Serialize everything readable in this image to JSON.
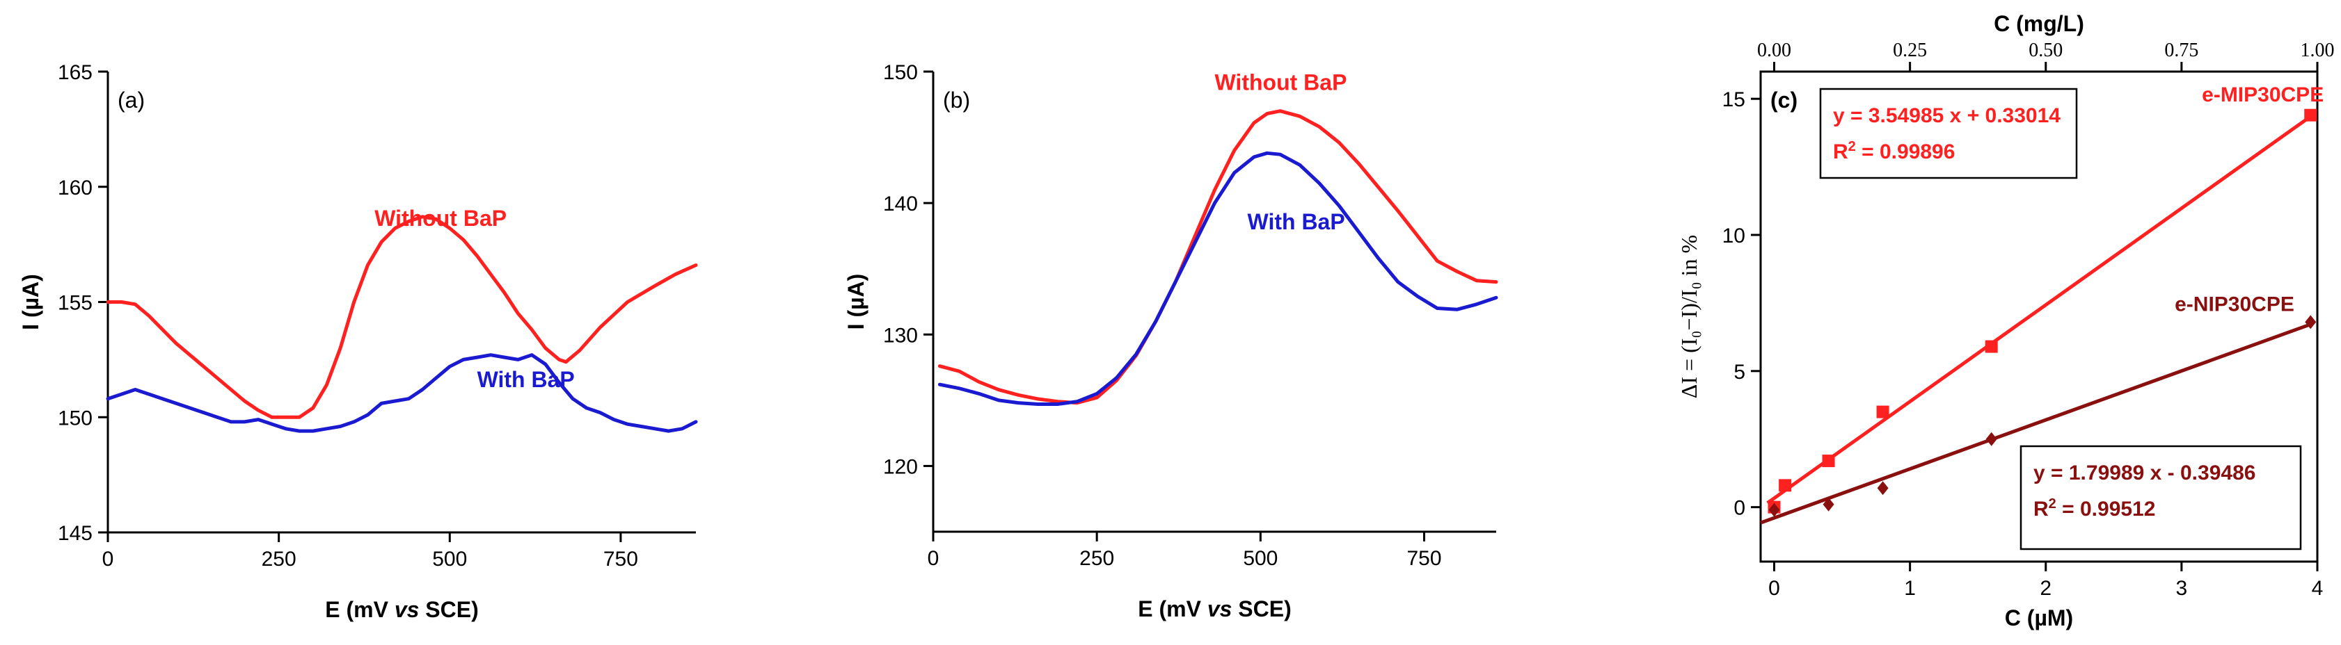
{
  "chart_data": [
    {
      "id": "a",
      "type": "line",
      "panel_label": "(a)",
      "xlabel": {
        "pre": "E (mV ",
        "ital": "vs",
        "post": " SCE)"
      },
      "ylabel": "I (µA)",
      "xlim": [
        0,
        860
      ],
      "ylim": [
        145,
        165
      ],
      "xticks": [
        0,
        250,
        500,
        750
      ],
      "yticks": [
        145,
        150,
        155,
        160,
        165
      ],
      "series": [
        {
          "name": "Without BaP",
          "color": "#ff2020",
          "label_at": [
            390,
            158.3
          ],
          "x": [
            0,
            20,
            40,
            60,
            80,
            100,
            120,
            140,
            160,
            180,
            200,
            220,
            240,
            260,
            280,
            300,
            320,
            340,
            360,
            380,
            400,
            420,
            440,
            460,
            480,
            500,
            520,
            540,
            560,
            580,
            600,
            620,
            640,
            660,
            670,
            690,
            720,
            760,
            800,
            830,
            860
          ],
          "y": [
            155.0,
            155.0,
            154.9,
            154.4,
            153.8,
            153.2,
            152.7,
            152.2,
            151.7,
            151.2,
            150.7,
            150.3,
            150.0,
            150.0,
            150.0,
            150.4,
            151.4,
            153.0,
            155.0,
            156.6,
            157.6,
            158.2,
            158.5,
            158.7,
            158.6,
            158.2,
            157.7,
            157.0,
            156.2,
            155.4,
            154.5,
            153.8,
            153.0,
            152.5,
            152.4,
            152.9,
            153.9,
            155.0,
            155.7,
            156.2,
            156.6
          ]
        },
        {
          "name": "With BaP",
          "color": "#1a1ad0",
          "label_at": [
            540,
            151.3
          ],
          "x": [
            0,
            20,
            40,
            60,
            80,
            100,
            120,
            140,
            160,
            180,
            200,
            220,
            240,
            260,
            280,
            300,
            320,
            340,
            360,
            380,
            400,
            420,
            440,
            460,
            480,
            500,
            520,
            540,
            560,
            580,
            600,
            620,
            640,
            660,
            680,
            700,
            720,
            740,
            760,
            780,
            800,
            820,
            840,
            860
          ],
          "y": [
            150.8,
            151.0,
            151.2,
            151.0,
            150.8,
            150.6,
            150.4,
            150.2,
            150.0,
            149.8,
            149.8,
            149.9,
            149.7,
            149.5,
            149.4,
            149.4,
            149.5,
            149.6,
            149.8,
            150.1,
            150.6,
            150.7,
            150.8,
            151.2,
            151.7,
            152.2,
            152.5,
            152.6,
            152.7,
            152.6,
            152.5,
            152.7,
            152.3,
            151.5,
            150.8,
            150.4,
            150.2,
            149.9,
            149.7,
            149.6,
            149.5,
            149.4,
            149.5,
            149.8
          ]
        }
      ]
    },
    {
      "id": "b",
      "type": "line",
      "panel_label": "(b)",
      "xlabel": {
        "pre": "E (mV ",
        "ital": "vs",
        "post": " SCE)"
      },
      "ylabel": "I (µA)",
      "xlim": [
        0,
        860
      ],
      "ylim": [
        115,
        150
      ],
      "xticks": [
        0,
        250,
        500,
        750
      ],
      "yticks": [
        120,
        130,
        140,
        150
      ],
      "series": [
        {
          "name": "Without BaP",
          "color": "#ff2020",
          "label_at": [
            430,
            148.6
          ],
          "x": [
            10,
            40,
            70,
            100,
            130,
            160,
            190,
            220,
            250,
            280,
            310,
            340,
            370,
            400,
            430,
            460,
            490,
            510,
            530,
            560,
            590,
            620,
            650,
            680,
            710,
            740,
            770,
            800,
            830,
            860
          ],
          "y": [
            127.6,
            127.2,
            126.4,
            125.8,
            125.4,
            125.1,
            124.9,
            124.8,
            125.2,
            126.5,
            128.4,
            131.0,
            134.0,
            137.5,
            141.0,
            144.0,
            146.1,
            146.8,
            147.0,
            146.6,
            145.8,
            144.6,
            143.0,
            141.2,
            139.4,
            137.5,
            135.6,
            134.8,
            134.1,
            134.0
          ]
        },
        {
          "name": "With BaP",
          "color": "#1a1ad0",
          "label_at": [
            480,
            138.0
          ],
          "x": [
            10,
            40,
            70,
            100,
            130,
            160,
            190,
            220,
            250,
            280,
            310,
            340,
            370,
            400,
            430,
            460,
            490,
            510,
            530,
            560,
            590,
            620,
            650,
            680,
            710,
            740,
            770,
            800,
            830,
            860
          ],
          "y": [
            126.2,
            125.9,
            125.5,
            125.0,
            124.8,
            124.7,
            124.7,
            124.9,
            125.5,
            126.7,
            128.5,
            131.0,
            134.0,
            137.0,
            140.0,
            142.3,
            143.5,
            143.8,
            143.7,
            142.9,
            141.5,
            139.8,
            137.8,
            135.8,
            134.0,
            132.9,
            132.0,
            131.9,
            132.3,
            132.8
          ]
        }
      ]
    },
    {
      "id": "c",
      "type": "scatter",
      "panel_label": "(c)",
      "xlabel": "C (µM)",
      "x2label": "C (mg/L)",
      "ylabel": "ΔI = (I₀−I)/I₀ in %",
      "xlim": [
        -0.1,
        4.0
      ],
      "ylim": [
        -2,
        16
      ],
      "xticks": [
        0,
        1,
        2,
        3,
        4
      ],
      "yticks": [
        0,
        5,
        10,
        15
      ],
      "x2ticks": [
        0.0,
        0.25,
        0.5,
        0.75,
        1.0
      ],
      "x2tick_labels": [
        "0.00",
        "0.25",
        "0.50",
        "0.75",
        "1.00"
      ],
      "x2_per_x": 0.25,
      "series": [
        {
          "name": "e-MIP30CPE",
          "color": "#ff2020",
          "marker": "square",
          "x": [
            0.0,
            0.08,
            0.4,
            0.8,
            1.6,
            3.95
          ],
          "y": [
            0.0,
            0.8,
            1.7,
            3.5,
            5.9,
            14.4
          ],
          "fit": {
            "slope": 3.54985,
            "intercept": 0.33014,
            "x_range": [
              -0.05,
              3.95
            ]
          },
          "equation": "y = 3.54985 x + 0.33014",
          "r2_prefix": "R",
          "r2_sup": "2",
          "r2_value": " = 0.99896",
          "label_at": [
            3.15,
            14.9
          ]
        },
        {
          "name": "e-NIP30CPE",
          "color": "#8a1010",
          "marker": "diamond",
          "x": [
            0.0,
            0.4,
            0.8,
            1.6,
            3.95
          ],
          "y": [
            -0.1,
            0.1,
            0.7,
            2.5,
            6.8
          ],
          "fit": {
            "slope": 1.79989,
            "intercept": -0.39486,
            "x_range": [
              -0.1,
              3.95
            ]
          },
          "equation": "y = 1.79989 x - 0.39486",
          "r2_prefix": "R",
          "r2_sup": "2",
          "r2_value": " = 0.99512",
          "label_at": [
            2.95,
            7.2
          ]
        }
      ]
    }
  ]
}
